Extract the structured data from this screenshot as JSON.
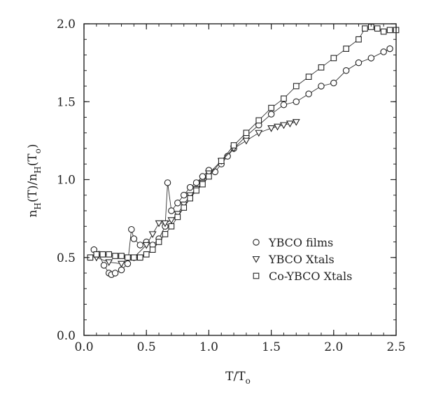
{
  "chart_data": {
    "type": "scatter",
    "xlabel": "T/T",
    "xlabel_sub": "o",
    "ylabel_parts": [
      "n",
      "H",
      "(T)/n",
      "H",
      "(T",
      "o",
      ")"
    ],
    "xlim": [
      0.0,
      2.5
    ],
    "ylim": [
      0.0,
      2.0
    ],
    "xticks": [
      0.0,
      0.5,
      1.0,
      1.5,
      2.0,
      2.5
    ],
    "yticks": [
      0.0,
      0.5,
      1.0,
      1.5,
      2.0
    ],
    "xtick_labels": [
      "0.0",
      "0.5",
      "1.0",
      "1.5",
      "2.0",
      "2.5"
    ],
    "ytick_labels": [
      "0.0",
      "0.5",
      "1.0",
      "1.5",
      "2.0"
    ],
    "grid": false,
    "legend_position": "lower-right",
    "series": [
      {
        "name": "YBCO films",
        "marker": "circle",
        "connected": true,
        "x": [
          0.08,
          0.12,
          0.16,
          0.2,
          0.22,
          0.25,
          0.3,
          0.35,
          0.38,
          0.4,
          0.45,
          0.5,
          0.55,
          0.6,
          0.65,
          0.67,
          0.7,
          0.75,
          0.8,
          0.85,
          0.9,
          0.95,
          1.0,
          1.05,
          1.1,
          1.15,
          1.2,
          1.3,
          1.4,
          1.5,
          1.6,
          1.7,
          1.8,
          1.9,
          2.0,
          2.1,
          2.2,
          2.3,
          2.4,
          2.45
        ],
        "y": [
          0.55,
          0.52,
          0.45,
          0.4,
          0.39,
          0.4,
          0.42,
          0.46,
          0.68,
          0.62,
          0.58,
          0.6,
          0.58,
          0.62,
          0.7,
          0.98,
          0.8,
          0.85,
          0.9,
          0.95,
          0.98,
          1.02,
          1.06,
          1.05,
          1.1,
          1.15,
          1.2,
          1.28,
          1.35,
          1.42,
          1.48,
          1.5,
          1.55,
          1.6,
          1.62,
          1.7,
          1.75,
          1.78,
          1.82,
          1.84
        ]
      },
      {
        "name": "YBCO Xtals",
        "marker": "triangle-down",
        "connected": true,
        "x": [
          0.1,
          0.2,
          0.3,
          0.4,
          0.5,
          0.55,
          0.6,
          0.65,
          0.7,
          0.75,
          0.8,
          0.85,
          0.9,
          0.95,
          1.0,
          1.1,
          1.2,
          1.3,
          1.4,
          1.5,
          1.55,
          1.6,
          1.65,
          1.7
        ],
        "y": [
          0.5,
          0.47,
          0.46,
          0.5,
          0.58,
          0.65,
          0.72,
          0.72,
          0.74,
          0.78,
          0.84,
          0.9,
          0.94,
          0.98,
          1.04,
          1.12,
          1.2,
          1.25,
          1.3,
          1.33,
          1.34,
          1.35,
          1.36,
          1.37
        ]
      },
      {
        "name": "Co-YBCO Xtals",
        "marker": "square",
        "connected": true,
        "x": [
          0.05,
          0.1,
          0.15,
          0.2,
          0.25,
          0.3,
          0.35,
          0.4,
          0.45,
          0.5,
          0.55,
          0.6,
          0.65,
          0.7,
          0.75,
          0.8,
          0.85,
          0.9,
          0.95,
          1.0,
          1.1,
          1.2,
          1.3,
          1.4,
          1.5,
          1.6,
          1.7,
          1.8,
          1.9,
          2.0,
          2.1,
          2.2,
          2.25,
          2.3,
          2.35,
          2.4,
          2.45,
          2.5
        ],
        "y": [
          0.5,
          0.52,
          0.52,
          0.52,
          0.51,
          0.51,
          0.5,
          0.5,
          0.5,
          0.52,
          0.55,
          0.6,
          0.65,
          0.7,
          0.76,
          0.82,
          0.88,
          0.93,
          0.97,
          1.02,
          1.12,
          1.22,
          1.3,
          1.38,
          1.46,
          1.52,
          1.6,
          1.66,
          1.72,
          1.78,
          1.84,
          1.9,
          1.97,
          1.98,
          1.97,
          1.95,
          1.96,
          1.96
        ]
      }
    ]
  }
}
